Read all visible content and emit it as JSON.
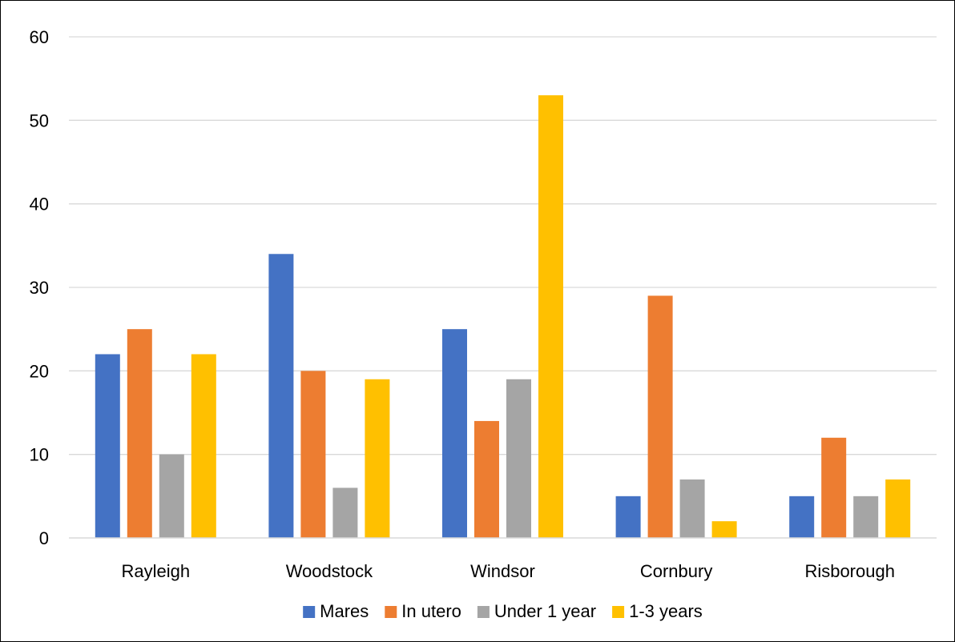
{
  "chart_data": {
    "type": "bar",
    "title": "",
    "xlabel": "",
    "ylabel": "",
    "categories": [
      "Rayleigh",
      "Woodstock",
      "Windsor",
      "Cornbury",
      "Risborough"
    ],
    "series": [
      {
        "name": "Mares",
        "color": "#4472C4",
        "values": [
          22,
          34,
          25,
          5,
          5
        ]
      },
      {
        "name": "In utero",
        "color": "#ED7D31",
        "values": [
          25,
          20,
          14,
          29,
          12
        ]
      },
      {
        "name": "Under 1 year",
        "color": "#A5A5A5",
        "values": [
          10,
          6,
          19,
          7,
          5
        ]
      },
      {
        "name": "1-3 years",
        "color": "#FFC000",
        "values": [
          22,
          19,
          53,
          2,
          7
        ]
      }
    ],
    "ylim": [
      0,
      60
    ],
    "yticks": [
      0,
      10,
      20,
      30,
      40,
      50,
      60
    ],
    "grid": true,
    "legend_position": "bottom"
  }
}
